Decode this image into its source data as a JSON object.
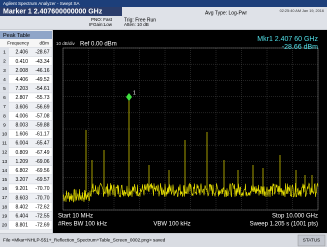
{
  "title_bar": "Agilent Spectrum Analyzer - Swept SA",
  "marker_bar": {
    "marker": "Marker 1 2.407600000000 GHz",
    "pno": "PNO: Fast",
    "ifgain": "IFGain:Low",
    "trig": "Trig: Free Run",
    "atten": "Atten: 10 dB",
    "avg_type": "Avg Type: Log-Pwr",
    "timestamp": "02:25:40 AM Jan 19, 2016"
  },
  "peak_table": {
    "title": "Peak Table",
    "headers": [
      "Frequency",
      "dBm"
    ],
    "rows": [
      [
        "1",
        "2.406",
        "-28.67"
      ],
      [
        "2",
        "0.410",
        "-43.34"
      ],
      [
        "3",
        "2.008",
        "-46.16"
      ],
      [
        "4",
        "4.406",
        "-49.52"
      ],
      [
        "5",
        "7.203",
        "-54.61"
      ],
      [
        "6",
        "2.807",
        "-55.73"
      ],
      [
        "7",
        "3.606",
        "-56.69"
      ],
      [
        "8",
        "4.006",
        "-57.08"
      ],
      [
        "9",
        "8.003",
        "-59.88"
      ],
      [
        "10",
        "1.606",
        "-61.17"
      ],
      [
        "11",
        "6.004",
        "-65.47"
      ],
      [
        "12",
        "0.809",
        "-67.49"
      ],
      [
        "13",
        "1.209",
        "-69.06"
      ],
      [
        "14",
        "6.802",
        "-69.56"
      ],
      [
        "15",
        "3.207",
        "-69.57"
      ],
      [
        "16",
        "9.201",
        "-70.70"
      ],
      [
        "17",
        "8.603",
        "-70.70"
      ],
      [
        "18",
        "8.402",
        "-72.62"
      ],
      [
        "19",
        "6.404",
        "-72.55"
      ],
      [
        "20",
        "8.801",
        "-72.69"
      ]
    ]
  },
  "display": {
    "mkr_freq": "Mkr1 2.407 60 GHz",
    "mkr_amp": "-28.66 dBm",
    "scale": "10 dB/div",
    "ref": "Ref 0.00 dBm",
    "marker_label": "1",
    "start": "Start 10 MHz",
    "stop": "Stop 10.000 GHz",
    "res_bw": "#Res BW 100 kHz",
    "vbw": "VBW 100 kHz",
    "sweep": "Sweep  1.205 s (1001 pts)"
  },
  "status": {
    "message": "File <Mkar+NHLP-551+_Reflection_Spectrum+Table_Screen_0002.png> saved",
    "label": "STATUS"
  }
}
